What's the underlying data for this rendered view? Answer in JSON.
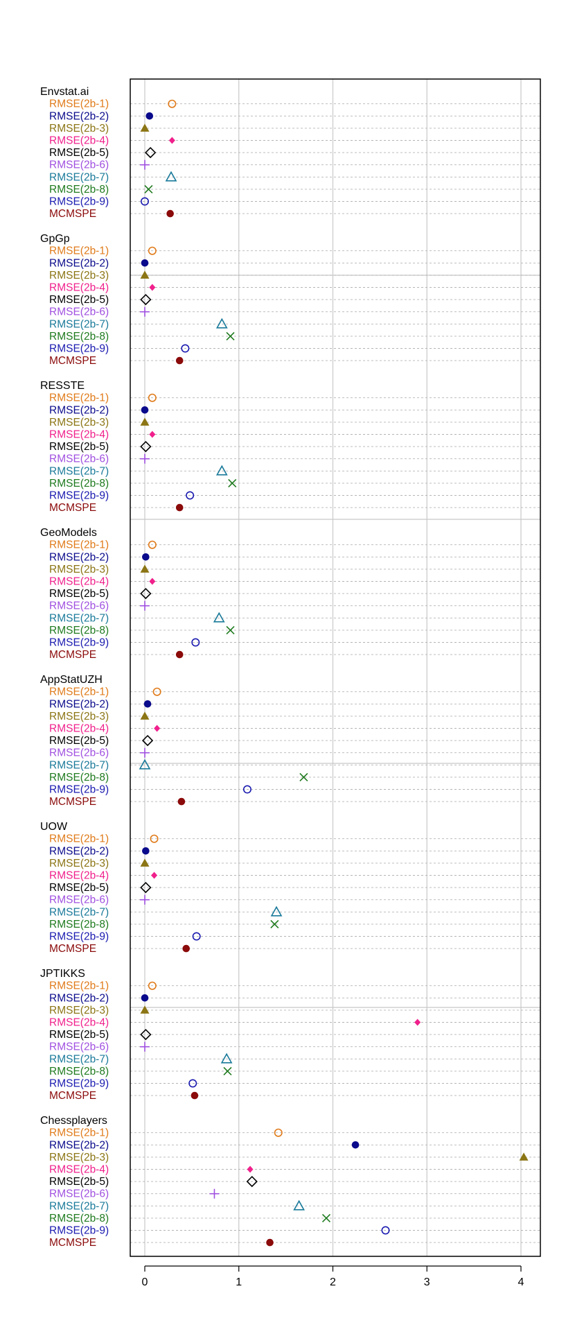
{
  "chart_data": {
    "type": "scatter",
    "orientation": "dot-plot",
    "xlim": [
      -0.15,
      4.2
    ],
    "xticks": [
      0,
      1,
      2,
      3,
      4
    ],
    "grid": true,
    "metrics": [
      {
        "label": "RMSE(2b-1)",
        "color": "#E07B1A",
        "marker": "circle-open"
      },
      {
        "label": "RMSE(2b-2)",
        "color": "#0A0A8C",
        "marker": "circle-filled"
      },
      {
        "label": "RMSE(2b-3)",
        "color": "#8B7514",
        "marker": "triangle-filled"
      },
      {
        "label": "RMSE(2b-4)",
        "color": "#F0208C",
        "marker": "diamond-filled"
      },
      {
        "label": "RMSE(2b-5)",
        "color": "#000000",
        "marker": "diamond-open"
      },
      {
        "label": "RMSE(2b-6)",
        "color": "#A050E0",
        "marker": "plus"
      },
      {
        "label": "RMSE(2b-7)",
        "color": "#1A7A9A",
        "marker": "triangle-open"
      },
      {
        "label": "RMSE(2b-8)",
        "color": "#1E7A1E",
        "marker": "cross"
      },
      {
        "label": "RMSE(2b-9)",
        "color": "#1A1AB0",
        "marker": "circle-open"
      },
      {
        "label": "MCMSPE",
        "color": "#8B0A0A",
        "marker": "circle-filled"
      }
    ],
    "groups": [
      {
        "name": "Envstat.ai",
        "values": [
          0.29,
          0.05,
          0.0,
          0.29,
          0.06,
          0.0,
          0.28,
          0.04,
          0.0,
          0.27
        ]
      },
      {
        "name": "GpGp",
        "values": [
          0.08,
          0.0,
          0.0,
          0.08,
          0.01,
          0.0,
          0.82,
          0.91,
          0.43,
          0.37
        ]
      },
      {
        "name": "RESSTE",
        "values": [
          0.08,
          0.0,
          0.0,
          0.08,
          0.01,
          0.0,
          0.82,
          0.93,
          0.48,
          0.37
        ]
      },
      {
        "name": "GeoModels",
        "values": [
          0.08,
          0.01,
          0.0,
          0.08,
          0.01,
          0.0,
          0.79,
          0.91,
          0.54,
          0.37
        ]
      },
      {
        "name": "AppStatUZH",
        "values": [
          0.13,
          0.03,
          0.0,
          0.13,
          0.03,
          0.0,
          0.0,
          1.69,
          1.09,
          0.39
        ]
      },
      {
        "name": "UOW",
        "values": [
          0.1,
          0.01,
          0.0,
          0.1,
          0.01,
          0.0,
          1.4,
          1.38,
          0.55,
          0.44
        ]
      },
      {
        "name": "JPTIKKS",
        "values": [
          0.08,
          0.0,
          0.0,
          2.9,
          0.01,
          0.0,
          0.87,
          0.88,
          0.51,
          0.53
        ]
      },
      {
        "name": "Chessplayers",
        "values": [
          1.42,
          2.24,
          4.03,
          1.12,
          1.14,
          0.74,
          1.64,
          1.93,
          2.56,
          1.33
        ]
      }
    ]
  }
}
